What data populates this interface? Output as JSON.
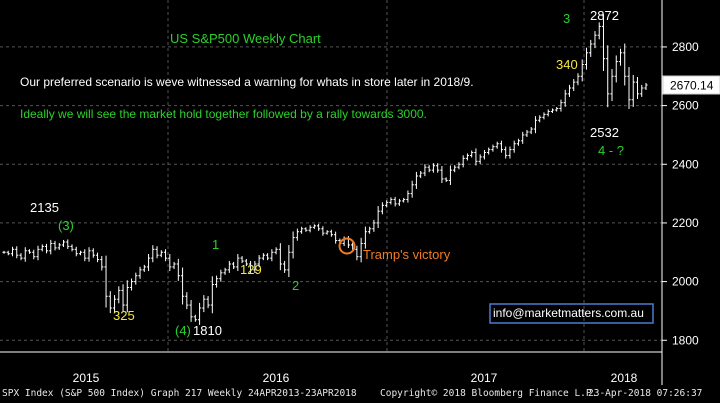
{
  "chart_data": {
    "type": "ohlc",
    "title": "US S&P500 Weekly Chart",
    "x_labels": [
      "2015",
      "2016",
      "2017",
      "2018"
    ],
    "y_ticks": [
      1800,
      2000,
      2200,
      2400,
      2600,
      2800
    ],
    "y_range": [
      1760,
      2960
    ],
    "last_price": 2670.14,
    "annotations": {
      "note_line1": "Our preferred scenario is weve witnessed a warning for whats in store later in 2018/9.",
      "note_line2": "Ideally we will see the market hold together followed by a rally towards 3000.",
      "label_2135": "2135",
      "label_wave_3_paren": "(3)",
      "label_325": "325",
      "label_wave_4_paren": "(4)",
      "label_1810": "1810",
      "label_wave_1": "1",
      "label_129": "129",
      "label_wave_2": "2",
      "tramps_victory": "Tramp's victory",
      "label_340": "340",
      "label_wave_3": "3",
      "label_2872": "2872",
      "label_2532": "2532",
      "label_wave_4": "4 - ?",
      "watermark": "info@marketmatters.com.au"
    },
    "series": [
      {
        "name": "SPX",
        "values": [
          2100,
          2095,
          2110,
          2090,
          2080,
          2105,
          2100,
          2085,
          2110,
          2120,
          2105,
          2130,
          2115,
          2125,
          2135,
          2120,
          2110,
          2095,
          2100,
          2080,
          2105,
          2090,
          2075,
          2050,
          1950,
          1910,
          1940,
          1970,
          1920,
          1980,
          2000,
          2020,
          2040,
          2050,
          2080,
          2110,
          2090,
          2100,
          2080,
          2050,
          2060,
          2020,
          1950,
          1920,
          1880,
          1870,
          1910,
          1940,
          1920,
          1990,
          2010,
          2030,
          2040,
          2060,
          2050,
          2080,
          2070,
          2060,
          2040,
          2060,
          2080,
          2090,
          2080,
          2100,
          2110,
          2060,
          2040,
          2100,
          2150,
          2170,
          2180,
          2175,
          2185,
          2190,
          2180,
          2165,
          2170,
          2160,
          2140,
          2130,
          2145,
          2125,
          2110,
          2085,
          2130,
          2170,
          2180,
          2200,
          2240,
          2260,
          2270,
          2280,
          2265,
          2275,
          2280,
          2300,
          2330,
          2360,
          2370,
          2390,
          2380,
          2395,
          2380,
          2350,
          2345,
          2380,
          2390,
          2400,
          2420,
          2430,
          2440,
          2410,
          2425,
          2440,
          2450,
          2460,
          2470,
          2450,
          2430,
          2450,
          2470,
          2480,
          2500,
          2510,
          2520,
          2550,
          2560,
          2570,
          2580,
          2585,
          2590,
          2610,
          2640,
          2660,
          2680,
          2700,
          2740,
          2780,
          2810,
          2840,
          2870,
          2760,
          2640,
          2700,
          2750,
          2780,
          2700,
          2620,
          2680,
          2640,
          2660,
          2670
        ]
      }
    ]
  },
  "footer": {
    "left": "SPX Index (S&P 500 Index) Graph 217  Weekly 24APR2013-23APR2018",
    "middle": "Copyright© 2018 Bloomberg Finance L.P.",
    "right": "23-Apr-2018 07:26:37"
  },
  "colors": {
    "background": "#000000",
    "bars": "#ffffff",
    "grid": "#555555",
    "yellow": "#f4e641",
    "green": "#2bd12b",
    "orange": "#f07b22",
    "watermark_border": "#4a7bd0",
    "price_box": "#ffffff"
  }
}
